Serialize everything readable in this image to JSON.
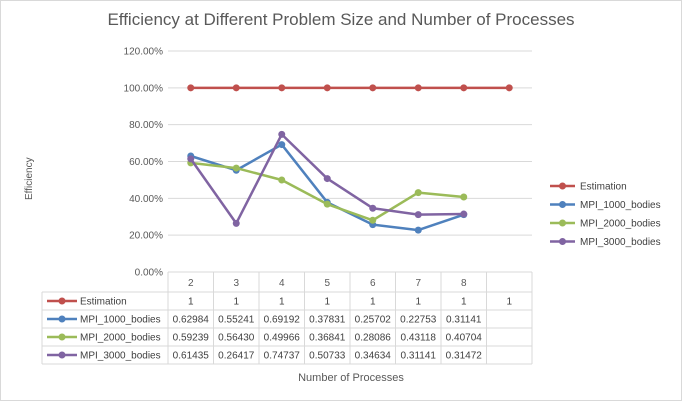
{
  "chart_data": {
    "type": "line",
    "title": "Efficiency at Different Problem Size and Number of Processes",
    "xlabel": "Number of Processes",
    "ylabel": "Efficiency",
    "categories": [
      "2",
      "3",
      "4",
      "5",
      "6",
      "7",
      "8",
      ""
    ],
    "ylim": [
      0,
      1.2
    ],
    "yticks": [
      "0.00%",
      "20.00%",
      "40.00%",
      "60.00%",
      "80.00%",
      "100.00%",
      "120.00%"
    ],
    "grid": true,
    "legend_position": "right",
    "series": [
      {
        "name": "Estimation",
        "color": "#c0504d",
        "values": [
          1,
          1,
          1,
          1,
          1,
          1,
          1,
          1
        ],
        "labels": [
          "1",
          "1",
          "1",
          "1",
          "1",
          "1",
          "1",
          "1"
        ]
      },
      {
        "name": "MPI_1000_bodies",
        "color": "#4f81bd",
        "values": [
          0.62984,
          0.55241,
          0.69192,
          0.37831,
          0.25702,
          0.22753,
          0.31141,
          null
        ],
        "labels": [
          "0.62984",
          "0.55241",
          "0.69192",
          "0.37831",
          "0.25702",
          "0.22753",
          "0.31141",
          ""
        ]
      },
      {
        "name": "MPI_2000_bodies",
        "color": "#9bbb59",
        "values": [
          0.59239,
          0.5643,
          0.49966,
          0.36841,
          0.28086,
          0.43118,
          0.40704,
          null
        ],
        "labels": [
          "0.59239",
          "0.56430",
          "0.49966",
          "0.36841",
          "0.28086",
          "0.43118",
          "0.40704",
          ""
        ]
      },
      {
        "name": "MPI_3000_bodies",
        "color": "#8064a2",
        "values": [
          0.61435,
          0.26417,
          0.74737,
          0.50733,
          0.34634,
          0.31141,
          0.31472,
          null
        ],
        "labels": [
          "0.61435",
          "0.26417",
          "0.74737",
          "0.50733",
          "0.34634",
          "0.31141",
          "0.31472",
          ""
        ]
      }
    ]
  }
}
